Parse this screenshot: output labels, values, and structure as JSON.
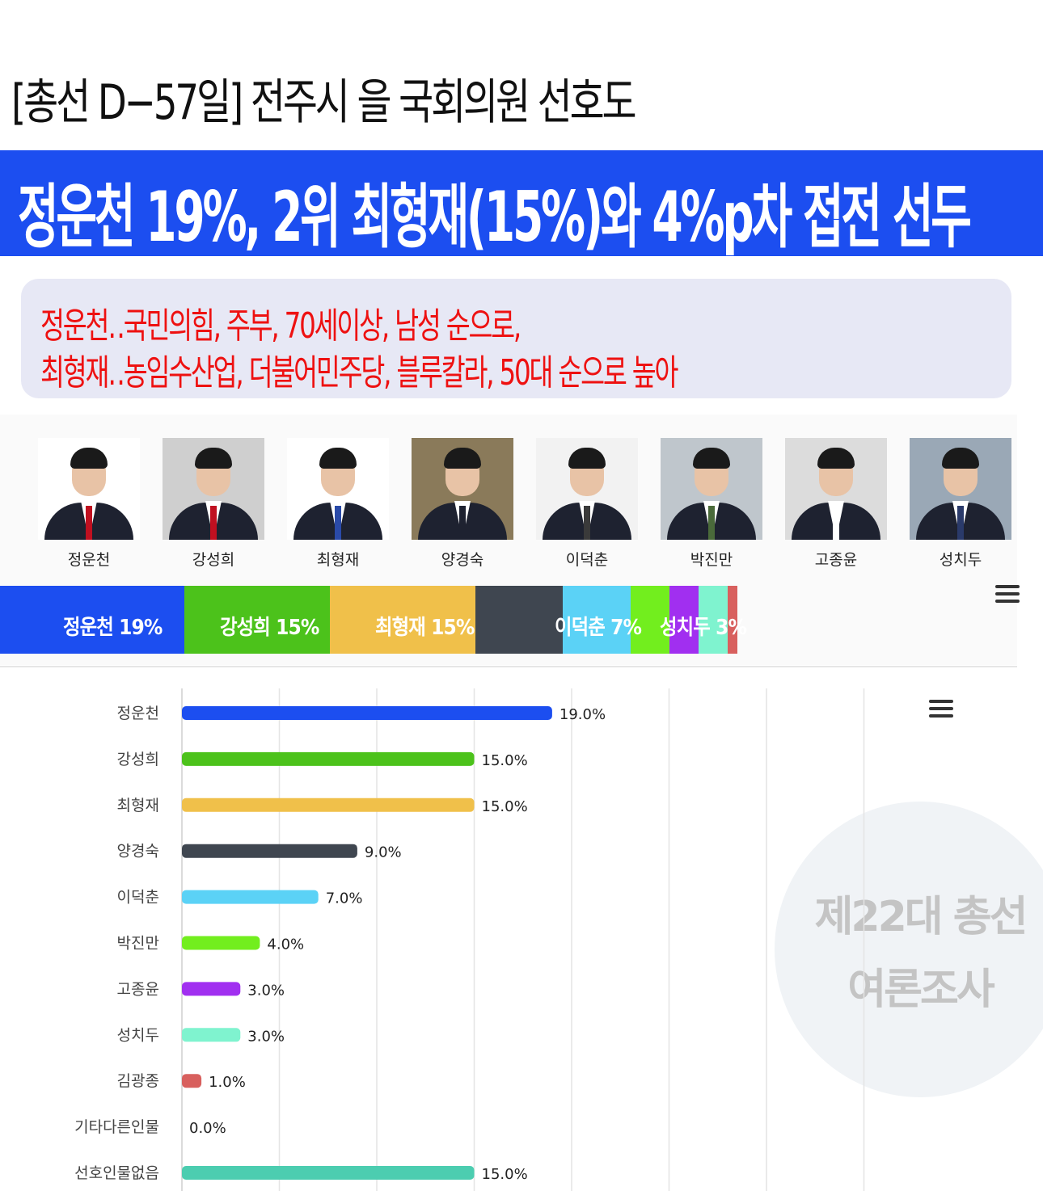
{
  "header": {
    "title": "[총선 D−57일] 전주시 을 국회의원 선호도",
    "headline": "정운천 19%, 2위 최형재(15%)와 4%p차 접전 선두",
    "sub_line1": "정운천‥국민의힘, 주부, 70세이상, 남성 순으로,",
    "sub_line2": "최형재‥농임수산업, 더불어민주당, 블루칼라, 50대 순으로 높아"
  },
  "candidates": [
    {
      "name": "정운천",
      "bg": "#ffffff",
      "tie": "#c01020"
    },
    {
      "name": "강성희",
      "bg": "#cfcfcf",
      "tie": "#c01020"
    },
    {
      "name": "최형재",
      "bg": "#ffffff",
      "tie": "#2a4aa8"
    },
    {
      "name": "양경숙",
      "bg": "#8a7a5a",
      "tie": "#1e2230"
    },
    {
      "name": "이덕춘",
      "bg": "#f2f2f2",
      "tie": "#3a3a3a"
    },
    {
      "name": "박진만",
      "bg": "#bfc6cc",
      "tie": "#4a6a3a"
    },
    {
      "name": "고종윤",
      "bg": "#dcdcdc",
      "tie": "#ffffff"
    },
    {
      "name": "성치두",
      "bg": "#9aa8b6",
      "tie": "#2a3a6a"
    }
  ],
  "stacked": {
    "labels": [
      "정운천 19%",
      "강성희 15%",
      "최형재 15%",
      "이덕춘 7%",
      "성치두 3%"
    ]
  },
  "watermark": {
    "line1": "제22대 총선",
    "line2": "여론조사"
  },
  "icons": [
    "menu-icon",
    "menu-icon"
  ],
  "chart_data": [
    {
      "type": "bar",
      "orientation": "stacked-horizontal",
      "segments": [
        {
          "name": "정운천",
          "value": 19,
          "color": "#1c4ef0"
        },
        {
          "name": "강성희",
          "value": 15,
          "color": "#4cc21b"
        },
        {
          "name": "최형재",
          "value": 15,
          "color": "#f0c04a"
        },
        {
          "name": "양경숙",
          "value": 9,
          "color": "#3f4650"
        },
        {
          "name": "이덕춘",
          "value": 7,
          "color": "#5bd2f6"
        },
        {
          "name": "박진만",
          "value": 4,
          "color": "#72ee1e"
        },
        {
          "name": "고종윤",
          "value": 3,
          "color": "#a12ff0"
        },
        {
          "name": "성치두",
          "value": 3,
          "color": "#7ff3cf"
        },
        {
          "name": "김광종",
          "value": 1,
          "color": "#d8605e"
        }
      ]
    },
    {
      "type": "bar",
      "orientation": "horizontal",
      "categories": [
        "정운천",
        "강성희",
        "최형재",
        "양경숙",
        "이덕춘",
        "박진만",
        "고종윤",
        "성치두",
        "김광종",
        "기타다른인물",
        "선호인물없음"
      ],
      "values": [
        19.0,
        15.0,
        15.0,
        9.0,
        7.0,
        4.0,
        3.0,
        3.0,
        1.0,
        0.0,
        15.0
      ],
      "value_labels": [
        "19.0%",
        "15.0%",
        "15.0%",
        "9.0%",
        "7.0%",
        "4.0%",
        "3.0%",
        "3.0%",
        "1.0%",
        "0.0%",
        "15.0%"
      ],
      "colors": [
        "#1c4ef0",
        "#4cc21b",
        "#f0c04a",
        "#3f4650",
        "#5bd2f6",
        "#72ee1e",
        "#a12ff0",
        "#7ff3cf",
        "#d8605e",
        "#888888",
        "#4ccdb0"
      ],
      "xlim": [
        0,
        45
      ],
      "grid": true,
      "xlabel": "",
      "ylabel": ""
    }
  ]
}
